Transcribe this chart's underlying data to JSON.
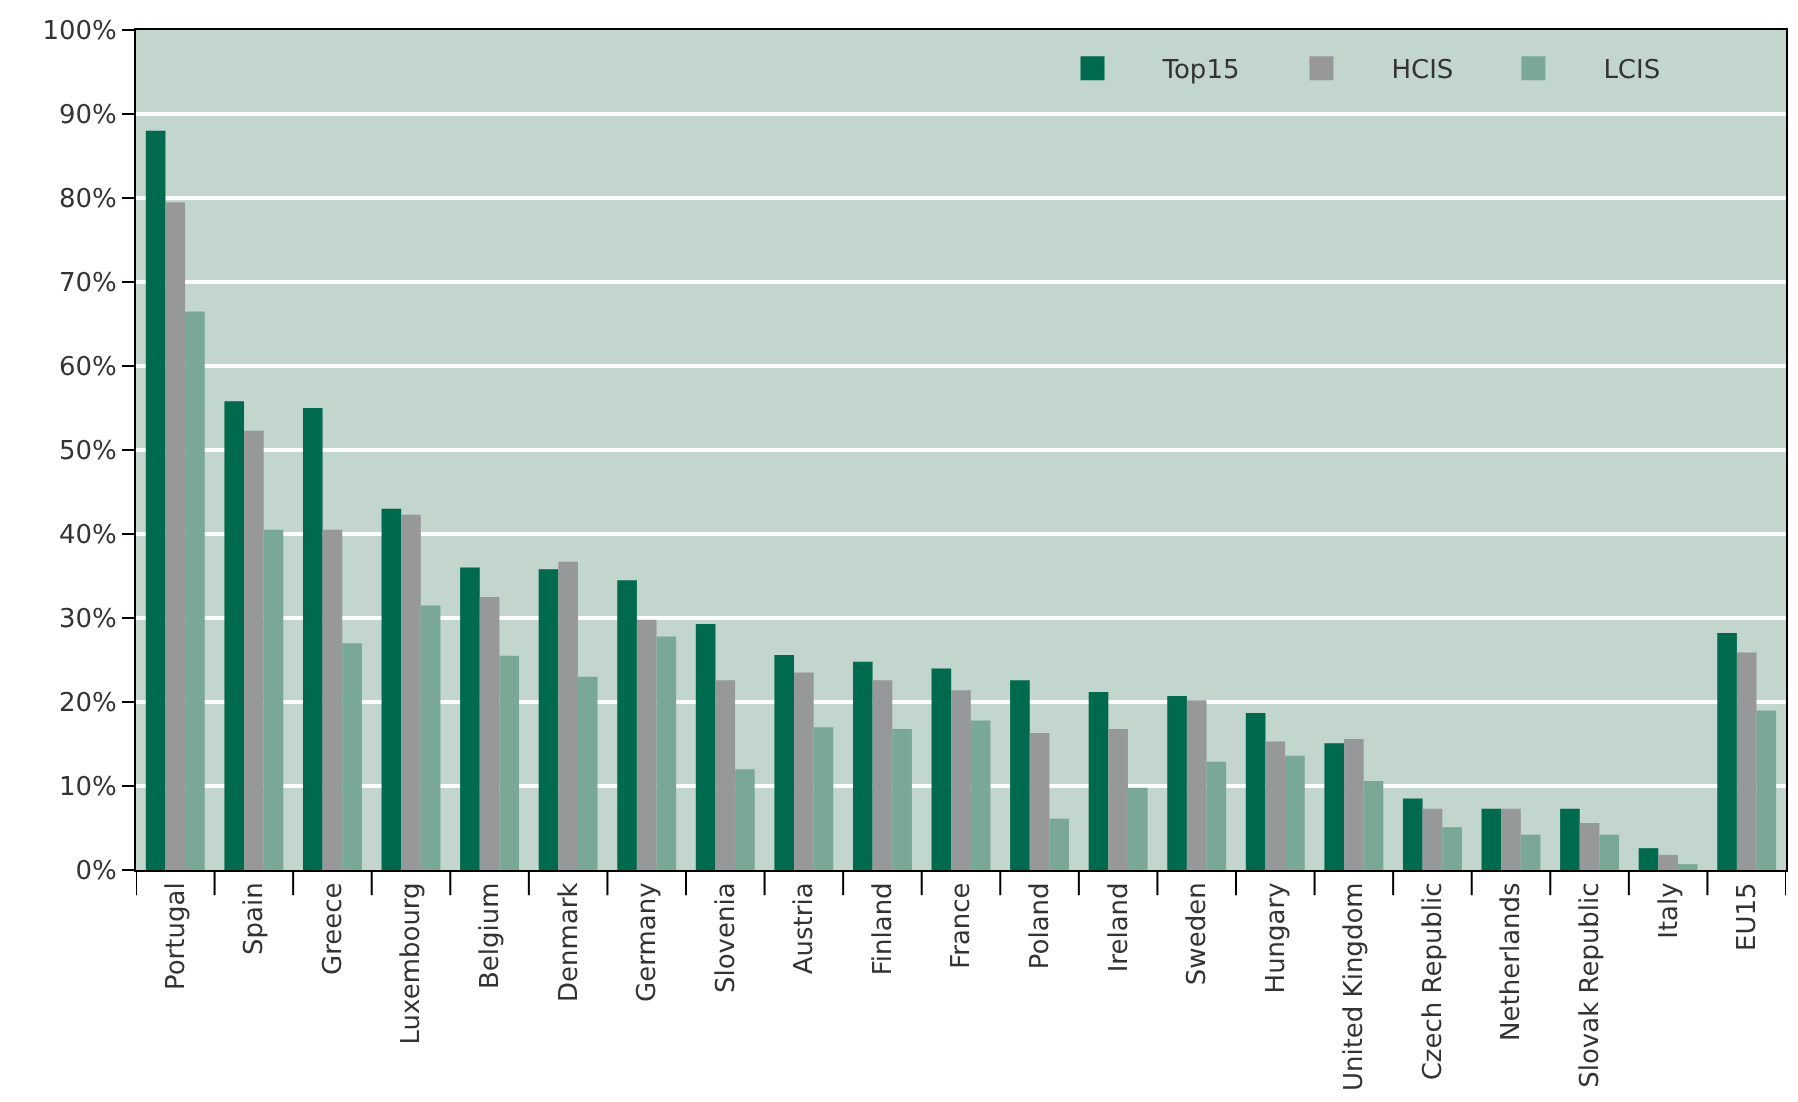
{
  "chart_data": {
    "type": "bar",
    "categories": [
      "Portugal",
      "Spain",
      "Greece",
      "Luxembourg",
      "Belgium",
      "Denmark",
      "Germany",
      "Slovenia",
      "Austria",
      "Finland",
      "France",
      "Poland",
      "Ireland",
      "Sweden",
      "Hungary",
      "United Kingdom",
      "Czech Republic",
      "Netherlands",
      "Slovak Republic",
      "Italy",
      "EU15"
    ],
    "series": [
      {
        "name": "Top15",
        "color": "#006a4e",
        "values": [
          88,
          55.8,
          55,
          43,
          36,
          35.8,
          34.5,
          29.3,
          25.6,
          24.8,
          24,
          22.6,
          21.2,
          20.7,
          18.7,
          15.1,
          8.5,
          7.3,
          7.3,
          2.6,
          28.2
        ]
      },
      {
        "name": "HCIS",
        "color": "#96989a",
        "values": [
          79.5,
          52.3,
          40.5,
          42.3,
          32.5,
          36.7,
          29.8,
          22.6,
          23.5,
          22.6,
          21.4,
          16.3,
          16.8,
          20.2,
          15.3,
          15.6,
          7.3,
          7.3,
          5.6,
          1.8,
          25.9
        ]
      },
      {
        "name": "LCIS",
        "color": "#7aa896",
        "values": [
          66.5,
          40.5,
          27,
          31.5,
          25.5,
          23,
          27.8,
          12,
          17,
          16.8,
          17.8,
          6.1,
          9.8,
          12.9,
          13.6,
          10.6,
          5.1,
          4.2,
          4.2,
          0.7,
          19
        ]
      }
    ],
    "ylim": [
      0,
      100
    ],
    "yticks": [
      {
        "value": 0,
        "label": "0%"
      },
      {
        "value": 10,
        "label": "10%"
      },
      {
        "value": 20,
        "label": "20%"
      },
      {
        "value": 30,
        "label": "30%"
      },
      {
        "value": 40,
        "label": "40%"
      },
      {
        "value": 50,
        "label": "50%"
      },
      {
        "value": 60,
        "label": "60%"
      },
      {
        "value": 70,
        "label": "70%"
      },
      {
        "value": 80,
        "label": "80%"
      },
      {
        "value": 90,
        "label": "90%"
      },
      {
        "value": 100,
        "label": "100%"
      }
    ],
    "grid": "y",
    "legend": "top right"
  }
}
